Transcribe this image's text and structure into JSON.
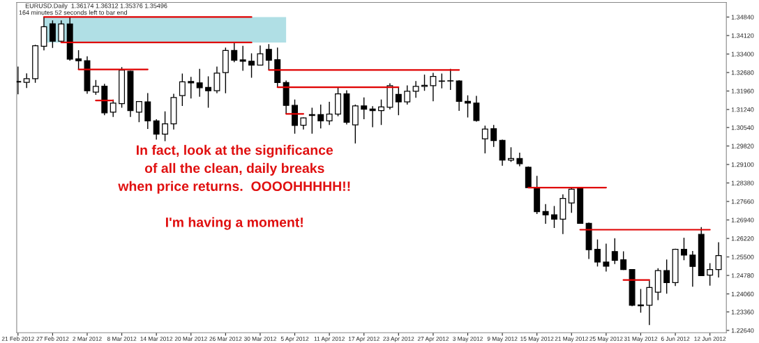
{
  "chart_data": {
    "type": "candlestick",
    "title": "EURUSD.Daily  1.36174 1.36312 1.35376 1.35496",
    "subtitle": "164 minutes 52 seconds left to bar end",
    "annotations": [
      "In fact, look at the significance\nof all the clean, daily breaks\nwhen price returns.  OOOOHHHHH!!\n\nI'm having a moment!"
    ],
    "categories": [
      "21 Feb 2012",
      null,
      null,
      null,
      "27 Feb 2012",
      null,
      null,
      null,
      "2 Mar 2012",
      null,
      null,
      null,
      "8 Mar 2012",
      null,
      null,
      null,
      "14 Mar 2012",
      null,
      null,
      null,
      "20 Mar 2012",
      null,
      null,
      null,
      "26 Mar 2012",
      null,
      null,
      null,
      "30 Mar 2012",
      null,
      null,
      null,
      "5 Apr 2012",
      null,
      null,
      null,
      "11 Apr 2012",
      null,
      null,
      null,
      "17 Apr 2012",
      null,
      null,
      null,
      "23 Apr 2012",
      null,
      null,
      null,
      "27 Apr 2012",
      null,
      null,
      null,
      "3 May 2012",
      null,
      null,
      null,
      "9 May 2012",
      null,
      null,
      null,
      "15 May 2012",
      null,
      null,
      null,
      "21 May 2012",
      null,
      null,
      null,
      "25 May 2012",
      null,
      null,
      null,
      "31 May 2012",
      null,
      null,
      null,
      "6 Jun 2012",
      null,
      null,
      null,
      "12 Jun 2012",
      null
    ],
    "ohlc": [
      [
        1.3231,
        1.3291,
        1.3183,
        1.3233
      ],
      [
        1.323,
        1.3265,
        1.3208,
        1.3244
      ],
      [
        1.3244,
        1.3376,
        1.3228,
        1.3372
      ],
      [
        1.337,
        1.3485,
        1.3354,
        1.3446
      ],
      [
        1.3458,
        1.3471,
        1.3364,
        1.339
      ],
      [
        1.339,
        1.3471,
        1.3388,
        1.3457
      ],
      [
        1.3457,
        1.3484,
        1.3314,
        1.332
      ],
      [
        1.3321,
        1.3355,
        1.328,
        1.3314
      ],
      [
        1.3314,
        1.3331,
        1.3185,
        1.3197
      ],
      [
        1.3192,
        1.3239,
        1.3181,
        1.3214
      ],
      [
        1.3215,
        1.3224,
        1.3102,
        1.3111
      ],
      [
        1.3114,
        1.3163,
        1.3095,
        1.3149
      ],
      [
        1.3147,
        1.3289,
        1.3131,
        1.3277
      ],
      [
        1.3273,
        1.3275,
        1.3095,
        1.312
      ],
      [
        1.3114,
        1.3156,
        1.3075,
        1.3155
      ],
      [
        1.3154,
        1.3188,
        1.3048,
        1.308
      ],
      [
        1.308,
        1.3086,
        1.3007,
        1.3028
      ],
      [
        1.3028,
        1.3117,
        1.3001,
        1.3068
      ],
      [
        1.3068,
        1.3185,
        1.3046,
        1.3171
      ],
      [
        1.3178,
        1.3264,
        1.3138,
        1.3232
      ],
      [
        1.3233,
        1.3251,
        1.3167,
        1.3228
      ],
      [
        1.3228,
        1.3282,
        1.3174,
        1.3209
      ],
      [
        1.321,
        1.3253,
        1.3131,
        1.3197
      ],
      [
        1.3197,
        1.3291,
        1.3187,
        1.3266
      ],
      [
        1.3268,
        1.3365,
        1.3187,
        1.3354
      ],
      [
        1.3354,
        1.3383,
        1.3308,
        1.3316
      ],
      [
        1.3317,
        1.3372,
        1.3275,
        1.3312
      ],
      [
        1.3312,
        1.3343,
        1.3248,
        1.3297
      ],
      [
        1.3297,
        1.3373,
        1.3295,
        1.3341
      ],
      [
        1.3358,
        1.3379,
        1.3278,
        1.3316
      ],
      [
        1.3318,
        1.3365,
        1.3209,
        1.3229
      ],
      [
        1.3229,
        1.3237,
        1.3107,
        1.314
      ],
      [
        1.314,
        1.3163,
        1.303,
        1.3062
      ],
      [
        1.3063,
        1.3093,
        1.3046,
        1.3091
      ],
      [
        1.3101,
        1.3131,
        1.303,
        1.3104
      ],
      [
        1.3104,
        1.3143,
        1.305,
        1.308
      ],
      [
        1.308,
        1.3154,
        1.3064,
        1.3106
      ],
      [
        1.3106,
        1.3211,
        1.3098,
        1.3185
      ],
      [
        1.3185,
        1.3199,
        1.3066,
        1.3074
      ],
      [
        1.3064,
        1.3143,
        1.2992,
        1.3138
      ],
      [
        1.3138,
        1.3171,
        1.3086,
        1.3125
      ],
      [
        1.3126,
        1.3137,
        1.3055,
        1.312
      ],
      [
        1.312,
        1.3163,
        1.3064,
        1.3134
      ],
      [
        1.3133,
        1.3226,
        1.3124,
        1.3217
      ],
      [
        1.3183,
        1.3211,
        1.3102,
        1.3154
      ],
      [
        1.3154,
        1.3218,
        1.3143,
        1.3195
      ],
      [
        1.3195,
        1.3235,
        1.317,
        1.3214
      ],
      [
        1.3214,
        1.326,
        1.3197,
        1.3218
      ],
      [
        1.3217,
        1.3267,
        1.3156,
        1.3253
      ],
      [
        1.3234,
        1.3264,
        1.3206,
        1.3235
      ],
      [
        1.3236,
        1.3282,
        1.32,
        1.3235
      ],
      [
        1.3235,
        1.3238,
        1.3119,
        1.3156
      ],
      [
        1.3156,
        1.3179,
        1.3093,
        1.3149
      ],
      [
        1.3149,
        1.3177,
        1.3077,
        1.3081
      ],
      [
        1.301,
        1.3061,
        1.2953,
        1.3048
      ],
      [
        1.3049,
        1.3064,
        1.2978,
        1.3003
      ],
      [
        1.3004,
        1.3007,
        1.2905,
        1.2927
      ],
      [
        1.2927,
        1.2977,
        1.292,
        1.2933
      ],
      [
        1.2933,
        1.2956,
        1.2903,
        1.2913
      ],
      [
        1.2899,
        1.2902,
        1.2819,
        1.282
      ],
      [
        1.282,
        1.2866,
        1.2717,
        1.2726
      ],
      [
        1.2727,
        1.2756,
        1.2679,
        1.2714
      ],
      [
        1.2714,
        1.2748,
        1.2663,
        1.2697
      ],
      [
        1.2697,
        1.2794,
        1.2639,
        1.2778
      ],
      [
        1.276,
        1.2823,
        1.2722,
        1.2814
      ],
      [
        1.2818,
        1.282,
        1.2679,
        1.2681
      ],
      [
        1.2681,
        1.2684,
        1.2542,
        1.2578
      ],
      [
        1.258,
        1.2618,
        1.2513,
        1.253
      ],
      [
        1.253,
        1.2602,
        1.2493,
        1.2514
      ],
      [
        1.2571,
        1.2623,
        1.2522,
        1.2537
      ],
      [
        1.2539,
        1.2572,
        1.2499,
        1.2501
      ],
      [
        1.2501,
        1.2502,
        1.2358,
        1.2362
      ],
      [
        1.2363,
        1.2425,
        1.2333,
        1.236
      ],
      [
        1.2362,
        1.2458,
        1.2285,
        1.2431
      ],
      [
        1.2413,
        1.2506,
        1.2382,
        1.2497
      ],
      [
        1.2497,
        1.254,
        1.2407,
        1.245
      ],
      [
        1.245,
        1.2582,
        1.2437,
        1.258
      ],
      [
        1.258,
        1.2625,
        1.2537,
        1.2557
      ],
      [
        1.2557,
        1.2573,
        1.2434,
        1.2513
      ],
      [
        1.2638,
        1.2666,
        1.2476,
        1.2477
      ],
      [
        1.2479,
        1.2526,
        1.2438,
        1.2501
      ],
      [
        1.2501,
        1.2607,
        1.247,
        1.2555
      ]
    ],
    "series": [
      {
        "type": "line",
        "color": "#e00000",
        "values": [
          null,
          null,
          null,
          1.3484,
          1.3484,
          1.3484,
          1.3484,
          1.3484,
          1.3484,
          1.3484,
          1.3484,
          1.3484,
          1.3484,
          1.3484,
          1.3484,
          1.3484,
          1.3484,
          1.3484,
          1.3484,
          1.3484,
          1.3484,
          1.3484,
          1.3484,
          1.3484,
          1.3484,
          1.3484,
          1.3484,
          1.3484,
          null,
          null,
          null,
          null,
          null,
          null,
          null,
          null,
          null,
          null,
          null,
          null,
          null,
          null,
          null,
          null,
          null,
          null,
          null,
          null,
          null,
          null,
          null,
          null,
          null,
          null,
          null,
          null,
          null,
          null,
          null,
          null,
          null,
          null,
          null,
          null,
          null,
          null,
          null,
          null,
          null,
          null,
          null,
          null,
          null,
          null,
          null,
          null,
          null,
          null,
          null,
          null,
          null,
          null
        ],
        "upper": [
          null,
          null,
          null,
          1.3484,
          1.3484,
          1.3484,
          1.3484,
          1.3484,
          1.3484,
          1.3484,
          1.3484,
          1.3484,
          1.3484,
          1.3484,
          1.3484,
          1.3484,
          1.3484,
          1.3484,
          1.3484,
          1.3484,
          1.3484,
          1.3484,
          1.3484,
          1.3484,
          1.3484,
          1.3484,
          1.3484,
          1.3484,
          1.3484,
          1.3484,
          1.3484,
          1.3484,
          null,
          null,
          null,
          null,
          null,
          null,
          null,
          null,
          null,
          null,
          null,
          null,
          null,
          null,
          null,
          null,
          null,
          null,
          null,
          null,
          null,
          null,
          null,
          null,
          null,
          null,
          null,
          null,
          null,
          null,
          null,
          null,
          null,
          null,
          null,
          null,
          null,
          null,
          null,
          null,
          null,
          null,
          null,
          null,
          null,
          null,
          null,
          null,
          null,
          null
        ],
        "lower": [
          null,
          null,
          null,
          1.3385,
          1.3385,
          1.3385,
          1.3385,
          1.3385,
          1.3385,
          1.3385,
          1.3385,
          1.3385,
          1.3385,
          1.3385,
          1.3385,
          1.3385,
          1.3385,
          1.3385,
          1.3385,
          1.3385,
          1.3385,
          1.3385,
          1.3385,
          1.3385,
          1.3385,
          1.3385,
          1.3385,
          1.3385,
          1.3385,
          1.3385,
          1.3385,
          1.3385,
          null,
          null,
          null,
          null,
          null,
          null,
          null,
          null,
          null,
          null,
          null,
          null,
          null,
          null,
          null,
          null,
          null,
          null,
          null,
          null,
          null,
          null,
          null,
          null,
          null,
          null,
          null,
          null,
          null,
          null,
          null,
          null,
          null,
          null,
          null,
          null,
          null,
          null,
          null,
          null,
          null,
          null,
          null,
          null,
          null,
          null,
          null,
          null,
          null,
          null
        ]
      },
      {
        "type": "line",
        "color": "#e00000",
        "values": [
          null,
          null,
          null,
          null,
          null,
          1.3385,
          1.3385,
          1.3385,
          1.3385,
          1.3385,
          1.3385,
          1.3385,
          1.3385,
          1.3385,
          1.3385,
          1.3385,
          1.3385,
          1.3385,
          1.3385,
          1.3385,
          1.3385,
          1.3385,
          1.3385,
          1.3385,
          1.3385,
          1.3385,
          1.3385,
          1.3385,
          null,
          null,
          null,
          null,
          null,
          null,
          null,
          null,
          null,
          null,
          null,
          null,
          null,
          null,
          null,
          null,
          null,
          null,
          null,
          null,
          null,
          null,
          null,
          null,
          null,
          null,
          null,
          null,
          null,
          null,
          null,
          null,
          null,
          null,
          null,
          null,
          null,
          null,
          null,
          null,
          null,
          null,
          null,
          null,
          null,
          null,
          null,
          null,
          null,
          null,
          null,
          null,
          null,
          null
        ]
      },
      {
        "type": "line",
        "color": "#e00000",
        "values": [
          null,
          null,
          null,
          null,
          null,
          null,
          null,
          1.328,
          1.328,
          1.328,
          1.328,
          1.328,
          1.328,
          1.328,
          1.328,
          1.328,
          null,
          null,
          null,
          null,
          null,
          null,
          null,
          null,
          null,
          null,
          null,
          null,
          null,
          null,
          null,
          null,
          null,
          null,
          null,
          null,
          null,
          null,
          null,
          null,
          null,
          null,
          null,
          null,
          null,
          null,
          null,
          null,
          null,
          null,
          null,
          null,
          null,
          null,
          null,
          null,
          null,
          null,
          null,
          null,
          null,
          null,
          null,
          null,
          null,
          null,
          null,
          null,
          null,
          null,
          null,
          null,
          null,
          null,
          null,
          null,
          null,
          null,
          null,
          null,
          null,
          null
        ]
      },
      {
        "type": "line",
        "color": "#e00000",
        "values": [
          null,
          null,
          null,
          null,
          null,
          null,
          null,
          null,
          null,
          1.3159,
          1.3159,
          1.3159,
          null,
          null,
          null,
          null,
          null,
          null,
          null,
          null,
          null,
          null,
          null,
          null,
          null,
          null,
          null,
          null,
          null,
          null,
          null,
          null,
          null,
          null,
          null,
          null,
          null,
          null,
          null,
          null,
          null,
          null,
          null,
          null,
          null,
          null,
          null,
          null,
          null,
          null,
          null,
          null,
          null,
          null,
          null,
          null,
          null,
          null,
          null,
          null,
          null,
          null,
          null,
          null,
          null,
          null,
          null,
          null,
          null,
          null,
          null,
          null,
          null,
          null,
          null,
          null,
          null,
          null,
          null,
          null,
          null,
          null
        ]
      },
      {
        "type": "line",
        "color": "#e00000",
        "values": [
          null,
          null,
          null,
          null,
          null,
          null,
          null,
          null,
          null,
          null,
          null,
          null,
          null,
          null,
          null,
          null,
          null,
          null,
          null,
          null,
          null,
          null,
          null,
          null,
          null,
          null,
          null,
          null,
          null,
          1.3278,
          1.3278,
          1.3278,
          1.3278,
          1.3278,
          1.3278,
          1.3278,
          1.3278,
          1.3278,
          1.3278,
          1.3278,
          1.3278,
          1.3278,
          1.3278,
          1.3278,
          1.3278,
          1.3278,
          1.3278,
          1.3278,
          1.3278,
          1.3278,
          1.3278,
          1.3278,
          null,
          null,
          null,
          null,
          null,
          null,
          null,
          null,
          null,
          null,
          null,
          null,
          null,
          null,
          null,
          null,
          null,
          null,
          null,
          null,
          null,
          null,
          null,
          null,
          null,
          null,
          null,
          null,
          null,
          null
        ]
      },
      {
        "type": "line",
        "color": "#e00000",
        "values": [
          null,
          null,
          null,
          null,
          null,
          null,
          null,
          null,
          null,
          null,
          null,
          null,
          null,
          null,
          null,
          null,
          null,
          null,
          null,
          null,
          null,
          null,
          null,
          null,
          null,
          null,
          null,
          null,
          null,
          null,
          1.3211,
          1.3211,
          1.3211,
          1.3211,
          1.3211,
          1.3211,
          1.3211,
          1.3211,
          1.3211,
          1.3211,
          1.3211,
          1.3211,
          1.3211,
          1.3211,
          1.3211,
          null,
          null,
          null,
          null,
          null,
          null,
          null,
          null,
          null,
          null,
          null,
          null,
          null,
          null,
          null,
          null,
          null,
          null,
          null,
          null,
          null,
          null,
          null,
          null,
          null,
          null,
          null,
          null,
          null,
          null,
          null,
          null,
          null,
          null,
          null,
          null,
          null
        ]
      },
      {
        "type": "line",
        "color": "#e00000",
        "values": [
          null,
          null,
          null,
          null,
          null,
          null,
          null,
          null,
          null,
          null,
          null,
          null,
          null,
          null,
          null,
          null,
          null,
          null,
          null,
          null,
          null,
          null,
          null,
          null,
          null,
          null,
          null,
          null,
          null,
          null,
          null,
          1.3107,
          1.3107,
          1.3107,
          null,
          null,
          null,
          null,
          null,
          null,
          null,
          null,
          null,
          null,
          null,
          null,
          null,
          null,
          null,
          null,
          null,
          null,
          null,
          null,
          null,
          null,
          null,
          null,
          null,
          null,
          null,
          null,
          null,
          null,
          null,
          null,
          null,
          null,
          null,
          null,
          null,
          null,
          null,
          null,
          null,
          null,
          null,
          null,
          null,
          null,
          null,
          null
        ]
      },
      {
        "type": "line",
        "color": "#e00000",
        "values": [
          null,
          null,
          null,
          null,
          null,
          null,
          null,
          null,
          null,
          null,
          null,
          null,
          null,
          null,
          null,
          null,
          null,
          null,
          null,
          null,
          null,
          null,
          null,
          null,
          null,
          null,
          null,
          null,
          null,
          null,
          null,
          null,
          null,
          null,
          null,
          null,
          null,
          null,
          null,
          null,
          null,
          null,
          null,
          null,
          null,
          null,
          null,
          null,
          null,
          null,
          null,
          null,
          null,
          null,
          null,
          null,
          null,
          null,
          null,
          1.282,
          1.282,
          1.282,
          1.282,
          1.282,
          1.282,
          1.282,
          1.282,
          1.282,
          1.282,
          null,
          null,
          null,
          null,
          null,
          null,
          null,
          null,
          null,
          null,
          null,
          null,
          null
        ]
      },
      {
        "type": "line",
        "color": "#e00000",
        "values": [
          null,
          null,
          null,
          null,
          null,
          null,
          null,
          null,
          null,
          null,
          null,
          null,
          null,
          null,
          null,
          null,
          null,
          null,
          null,
          null,
          null,
          null,
          null,
          null,
          null,
          null,
          null,
          null,
          null,
          null,
          null,
          null,
          null,
          null,
          null,
          null,
          null,
          null,
          null,
          null,
          null,
          null,
          null,
          null,
          null,
          null,
          null,
          null,
          null,
          null,
          null,
          null,
          null,
          null,
          null,
          null,
          null,
          null,
          null,
          null,
          null,
          null,
          null,
          null,
          null,
          1.2656,
          1.2656,
          1.2656,
          1.2656,
          1.2656,
          1.2656,
          1.2656,
          1.2656,
          1.2656,
          1.2656,
          1.2656,
          1.2656,
          1.2656,
          1.2656,
          1.2656,
          1.2656,
          null
        ]
      },
      {
        "type": "line",
        "color": "#e00000",
        "values": [
          null,
          null,
          null,
          null,
          null,
          null,
          null,
          null,
          null,
          null,
          null,
          null,
          null,
          null,
          null,
          null,
          null,
          null,
          null,
          null,
          null,
          null,
          null,
          null,
          null,
          null,
          null,
          null,
          null,
          null,
          null,
          null,
          null,
          null,
          null,
          null,
          null,
          null,
          null,
          null,
          null,
          null,
          null,
          null,
          null,
          null,
          null,
          null,
          null,
          null,
          null,
          null,
          null,
          null,
          null,
          null,
          null,
          null,
          null,
          null,
          null,
          null,
          null,
          null,
          null,
          null,
          null,
          null,
          null,
          null,
          1.246,
          1.246,
          1.246,
          1.246,
          null,
          null,
          null,
          null,
          null,
          null,
          null,
          null
        ]
      }
    ],
    "ylim": [
      1.2255,
      1.3541
    ],
    "yticks": [
      {
        "value": 1.3484,
        "label": "1.34840"
      },
      {
        "value": 1.3412,
        "label": "1.34120"
      },
      {
        "value": 1.334,
        "label": "1.33400"
      },
      {
        "value": 1.3268,
        "label": "1.32680"
      },
      {
        "value": 1.3196,
        "label": "1.31960"
      },
      {
        "value": 1.3124,
        "label": "1.31240"
      },
      {
        "value": 1.3054,
        "label": "1.30540"
      },
      {
        "value": 1.2982,
        "label": "1.29820"
      },
      {
        "value": 1.291,
        "label": "1.29100"
      },
      {
        "value": 1.2838,
        "label": "1.28380"
      },
      {
        "value": 1.2766,
        "label": "1.27660"
      },
      {
        "value": 1.2694,
        "label": "1.26940"
      },
      {
        "value": 1.2622,
        "label": "1.26220"
      },
      {
        "value": 1.255,
        "label": "1.25500"
      },
      {
        "value": 1.2478,
        "label": "1.24780"
      },
      {
        "value": 1.2406,
        "label": "1.24060"
      },
      {
        "value": 1.2336,
        "label": "1.23360"
      },
      {
        "value": 1.2264,
        "label": "1.22640"
      }
    ]
  }
}
